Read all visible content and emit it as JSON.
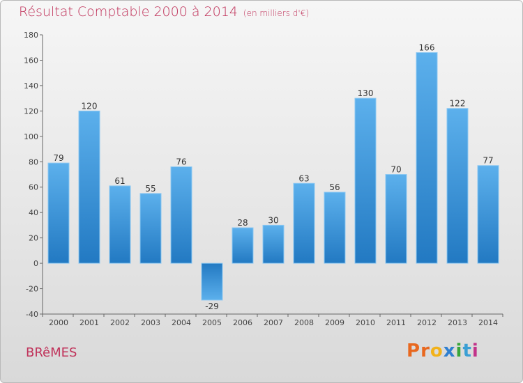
{
  "chart_data": {
    "type": "bar",
    "title": "Résultat Comptable 2000 à 2014",
    "unit_note": "(en milliers d'€)",
    "categories": [
      "2000",
      "2001",
      "2002",
      "2003",
      "2004",
      "2005",
      "2006",
      "2007",
      "2008",
      "2009",
      "2010",
      "2011",
      "2012",
      "2013",
      "2014"
    ],
    "values": [
      79,
      120,
      61,
      55,
      76,
      -29,
      28,
      30,
      63,
      56,
      130,
      70,
      166,
      122,
      77
    ],
    "ylim": [
      -40,
      180
    ],
    "yticks": [
      -40,
      -20,
      0,
      20,
      40,
      60,
      80,
      100,
      120,
      140,
      160,
      180
    ],
    "grid": false,
    "xlabel": "",
    "ylabel": "",
    "bar_color": "#2f8fd6"
  },
  "place_name": "BRêMES",
  "brand": {
    "letters": [
      "P",
      "r",
      "o",
      "x",
      "i",
      "t",
      "i"
    ],
    "colors": [
      "#e8681f",
      "#e8681f",
      "#f2b21a",
      "#2f7fd0",
      "#38a63a",
      "#3a9fd4",
      "#c2338a"
    ]
  },
  "colors": {
    "title": "#c0325a",
    "axis": "#666666"
  }
}
